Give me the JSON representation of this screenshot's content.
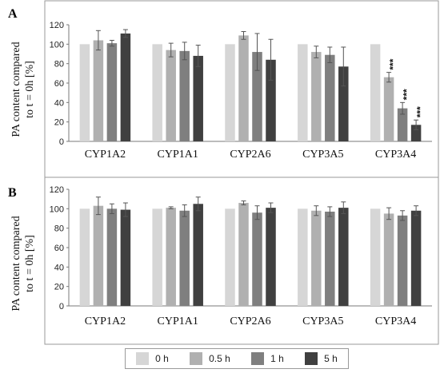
{
  "panels": [
    {
      "letter": "A"
    },
    {
      "letter": "B"
    }
  ],
  "ylabel_line1": "PA content compared",
  "ylabel_line2": "to t = 0h [%]",
  "legend": [
    {
      "label": "0 h",
      "color": "#d6d6d6"
    },
    {
      "label": "0.5 h",
      "color": "#b0b0b0"
    },
    {
      "label": "1 h",
      "color": "#7f7f7f"
    },
    {
      "label": "5 h",
      "color": "#404040"
    }
  ],
  "chart_data": [
    {
      "type": "bar",
      "panel": "A",
      "categories": [
        "CYP1A2",
        "CYP1A1",
        "CYP2A6",
        "CYP3A5",
        "CYP3A4"
      ],
      "ylim": [
        0,
        120
      ],
      "yticks": [
        0,
        20,
        40,
        60,
        80,
        100,
        120
      ],
      "grid": false,
      "series": [
        {
          "name": "0 h",
          "values": [
            100,
            100,
            100,
            100,
            100
          ],
          "errors": [
            0.5,
            0.5,
            0.5,
            0.5,
            0.5
          ]
        },
        {
          "name": "0.5 h",
          "values": [
            104,
            94,
            109,
            92,
            66
          ],
          "errors": [
            10,
            7,
            4,
            6,
            5
          ]
        },
        {
          "name": "1 h",
          "values": [
            101,
            93,
            92,
            89,
            34
          ],
          "errors": [
            3,
            9,
            19,
            8,
            6
          ]
        },
        {
          "name": "5 h",
          "values": [
            111,
            88,
            84,
            77,
            17
          ],
          "errors": [
            4,
            11,
            21,
            20,
            5
          ]
        }
      ],
      "annotations": [
        {
          "category": "CYP3A4",
          "series": "0.5 h",
          "text": "***"
        },
        {
          "category": "CYP3A4",
          "series": "1 h",
          "text": "***"
        },
        {
          "category": "CYP3A4",
          "series": "5 h",
          "text": "***"
        }
      ]
    },
    {
      "type": "bar",
      "panel": "B",
      "categories": [
        "CYP1A2",
        "CYP1A1",
        "CYP2A6",
        "CYP3A5",
        "CYP3A4"
      ],
      "ylim": [
        0,
        120
      ],
      "yticks": [
        0,
        20,
        40,
        60,
        80,
        100,
        120
      ],
      "grid": false,
      "series": [
        {
          "name": "0 h",
          "values": [
            100,
            100,
            100,
            100,
            100
          ],
          "errors": [
            0.5,
            0.5,
            0.5,
            0.5,
            0.5
          ]
        },
        {
          "name": "0.5 h",
          "values": [
            103,
            101,
            106,
            98,
            95
          ],
          "errors": [
            9,
            1,
            2,
            5,
            6
          ]
        },
        {
          "name": "1 h",
          "values": [
            100,
            98,
            96,
            97,
            93
          ],
          "errors": [
            5,
            6,
            7,
            5,
            5
          ]
        },
        {
          "name": "5 h",
          "values": [
            99,
            105,
            101,
            101,
            98
          ],
          "errors": [
            7,
            7,
            5,
            6,
            5
          ]
        }
      ],
      "annotations": []
    }
  ]
}
